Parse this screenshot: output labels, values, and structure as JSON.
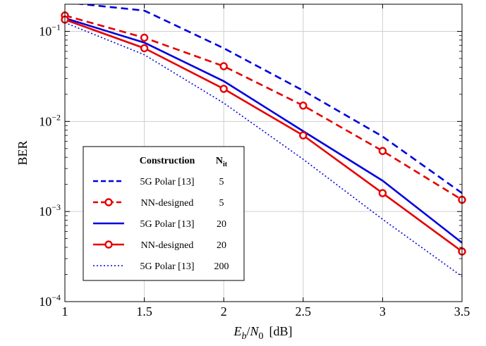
{
  "chart_data": {
    "type": "line",
    "xlabel_parts": {
      "base1": "E",
      "sub1": "b",
      "sep": "/",
      "base2": "N",
      "sub2": "0",
      "unit": "[dB]"
    },
    "ylabel": "BER",
    "xlim": [
      1,
      3.5
    ],
    "ylim": [
      0.0001,
      0.2
    ],
    "yscale": "log",
    "grid": true,
    "x_ticks": [
      1,
      1.5,
      2,
      2.5,
      3,
      3.5
    ],
    "x_tick_labels": [
      "1",
      "1.5",
      "2",
      "2.5",
      "3",
      "3.5"
    ],
    "y_ticks": [
      {
        "value": 0.1,
        "base": "10",
        "exp": "−1"
      },
      {
        "value": 0.01,
        "base": "10",
        "exp": "−2"
      },
      {
        "value": 0.001,
        "base": "10",
        "exp": "−3"
      },
      {
        "value": 0.0001,
        "base": "10",
        "exp": "−4"
      }
    ],
    "legend": {
      "placement": "lower-left",
      "header_construction": "Construction",
      "header_nit_base": "N",
      "header_nit_sub": "it"
    },
    "series": [
      {
        "name": "5G Polar [13]",
        "nit": "5",
        "color": "#0000dd",
        "style": "dashed",
        "marker": "none",
        "x": [
          1,
          1.5,
          2,
          2.5,
          3,
          3.5
        ],
        "y": [
          0.21,
          0.17,
          0.065,
          0.022,
          0.0068,
          0.0016
        ]
      },
      {
        "name": "NN-designed",
        "nit": "5",
        "color": "#e60000",
        "style": "dashed",
        "marker": "circle",
        "x": [
          1,
          1.5,
          2,
          2.5,
          3,
          3.5
        ],
        "y": [
          0.15,
          0.085,
          0.041,
          0.015,
          0.0047,
          0.00135
        ]
      },
      {
        "name": "5G Polar [13]",
        "nit": "20",
        "color": "#0000dd",
        "style": "solid",
        "marker": "none",
        "x": [
          1,
          1.5,
          2,
          2.5,
          3,
          3.5
        ],
        "y": [
          0.14,
          0.075,
          0.028,
          0.0078,
          0.0022,
          0.00045
        ]
      },
      {
        "name": "NN-designed",
        "nit": "20",
        "color": "#e60000",
        "style": "solid",
        "marker": "circle",
        "x": [
          1,
          1.5,
          2,
          2.5,
          3,
          3.5
        ],
        "y": [
          0.135,
          0.065,
          0.023,
          0.007,
          0.0016,
          0.00036
        ]
      },
      {
        "name": "5G Polar [13]",
        "nit": "200",
        "color": "#0000dd",
        "style": "dotted",
        "marker": "none",
        "x": [
          1,
          1.5,
          2,
          2.5,
          3,
          3.5
        ],
        "y": [
          0.125,
          0.055,
          0.016,
          0.0038,
          0.00082,
          0.00019
        ]
      }
    ]
  }
}
